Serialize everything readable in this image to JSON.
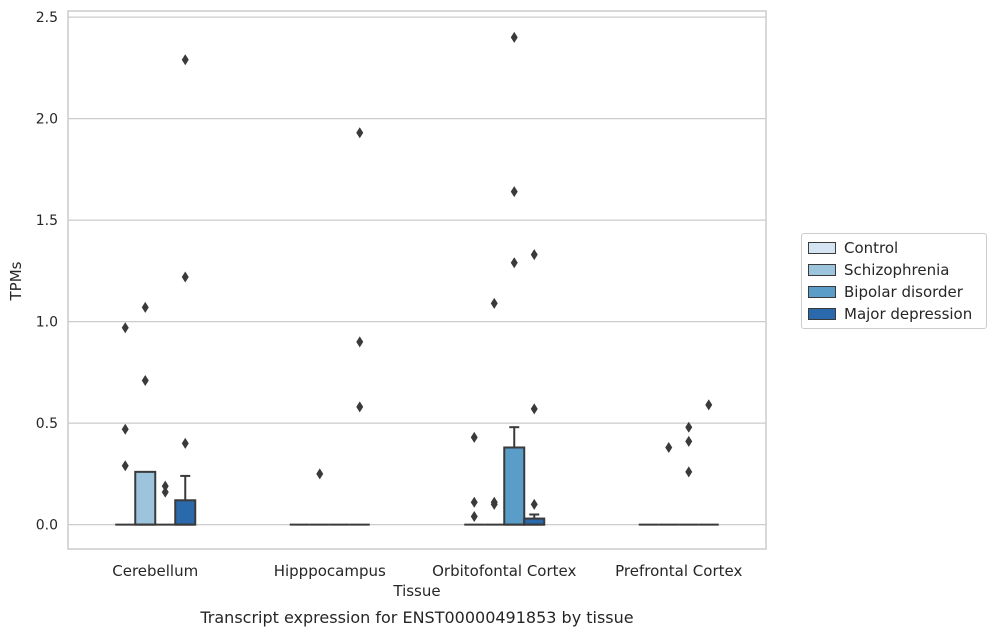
{
  "chart_data": {
    "type": "box",
    "title": "Transcript expression for ENST00000491853 by tissue",
    "xlabel": "Tissue",
    "ylabel": "TPMs",
    "ylim": [
      -0.12,
      2.53
    ],
    "yticks": [
      "0.0",
      "0.5",
      "1.0",
      "1.5",
      "2.0",
      "2.5"
    ],
    "grid": "horizontal",
    "legend_position": "right",
    "categories": [
      "Cerebellum",
      "Hipppocampus",
      "Orbitofontal Cortex",
      "Prefrontal Cortex"
    ],
    "series": [
      {
        "name": "Control",
        "color": "#d4e4f2",
        "boxes": [
          {
            "q1": 0,
            "median": 0,
            "q3": 0,
            "whisker_low": 0,
            "whisker_high": 0,
            "outliers": [
              0.29,
              0.47,
              0.97
            ]
          },
          {
            "q1": 0,
            "median": 0,
            "q3": 0,
            "whisker_low": 0,
            "whisker_high": 0,
            "outliers": []
          },
          {
            "q1": 0,
            "median": 0,
            "q3": 0,
            "whisker_low": 0,
            "whisker_high": 0,
            "outliers": [
              0.04,
              0.11,
              0.43
            ]
          },
          {
            "q1": 0,
            "median": 0,
            "q3": 0,
            "whisker_low": 0,
            "whisker_high": 0,
            "outliers": []
          }
        ]
      },
      {
        "name": "Schizophrenia",
        "color": "#9cc4dd",
        "boxes": [
          {
            "q1": 0,
            "median": 0,
            "q3": 0.26,
            "whisker_low": 0,
            "whisker_high": 0.26,
            "outliers": [
              0.71,
              1.07
            ]
          },
          {
            "q1": 0,
            "median": 0,
            "q3": 0,
            "whisker_low": 0,
            "whisker_high": 0,
            "outliers": [
              0.25
            ]
          },
          {
            "q1": 0,
            "median": 0,
            "q3": 0,
            "whisker_low": 0,
            "whisker_high": 0,
            "outliers": [
              0.1,
              0.11,
              1.09
            ]
          },
          {
            "q1": 0,
            "median": 0,
            "q3": 0,
            "whisker_low": 0,
            "whisker_high": 0,
            "outliers": [
              0.38
            ]
          }
        ]
      },
      {
        "name": "Bipolar disorder",
        "color": "#5b9dc9",
        "boxes": [
          {
            "q1": 0,
            "median": 0,
            "q3": 0,
            "whisker_low": 0,
            "whisker_high": 0,
            "outliers": [
              0.16,
              0.19
            ]
          },
          {
            "q1": 0,
            "median": 0,
            "q3": 0,
            "whisker_low": 0,
            "whisker_high": 0,
            "outliers": []
          },
          {
            "q1": 0,
            "median": 0,
            "q3": 0.38,
            "whisker_low": 0,
            "whisker_high": 0.48,
            "outliers": [
              1.29,
              1.64,
              2.4
            ]
          },
          {
            "q1": 0,
            "median": 0,
            "q3": 0,
            "whisker_low": 0,
            "whisker_high": 0,
            "outliers": [
              0.26,
              0.41,
              0.48
            ]
          }
        ]
      },
      {
        "name": "Major depression",
        "color": "#2a69ab",
        "boxes": [
          {
            "q1": 0,
            "median": 0,
            "q3": 0.12,
            "whisker_low": 0,
            "whisker_high": 0.24,
            "outliers": [
              0.4,
              1.22,
              2.29
            ]
          },
          {
            "q1": 0,
            "median": 0,
            "q3": 0,
            "whisker_low": 0,
            "whisker_high": 0,
            "outliers": [
              0.58,
              0.9,
              1.93
            ]
          },
          {
            "q1": 0,
            "median": 0,
            "q3": 0.03,
            "whisker_low": 0,
            "whisker_high": 0.05,
            "outliers": [
              0.1,
              0.57,
              1.33
            ]
          },
          {
            "q1": 0,
            "median": 0,
            "q3": 0,
            "whisker_low": 0,
            "whisker_high": 0,
            "outliers": [
              0.59
            ]
          }
        ]
      }
    ]
  }
}
